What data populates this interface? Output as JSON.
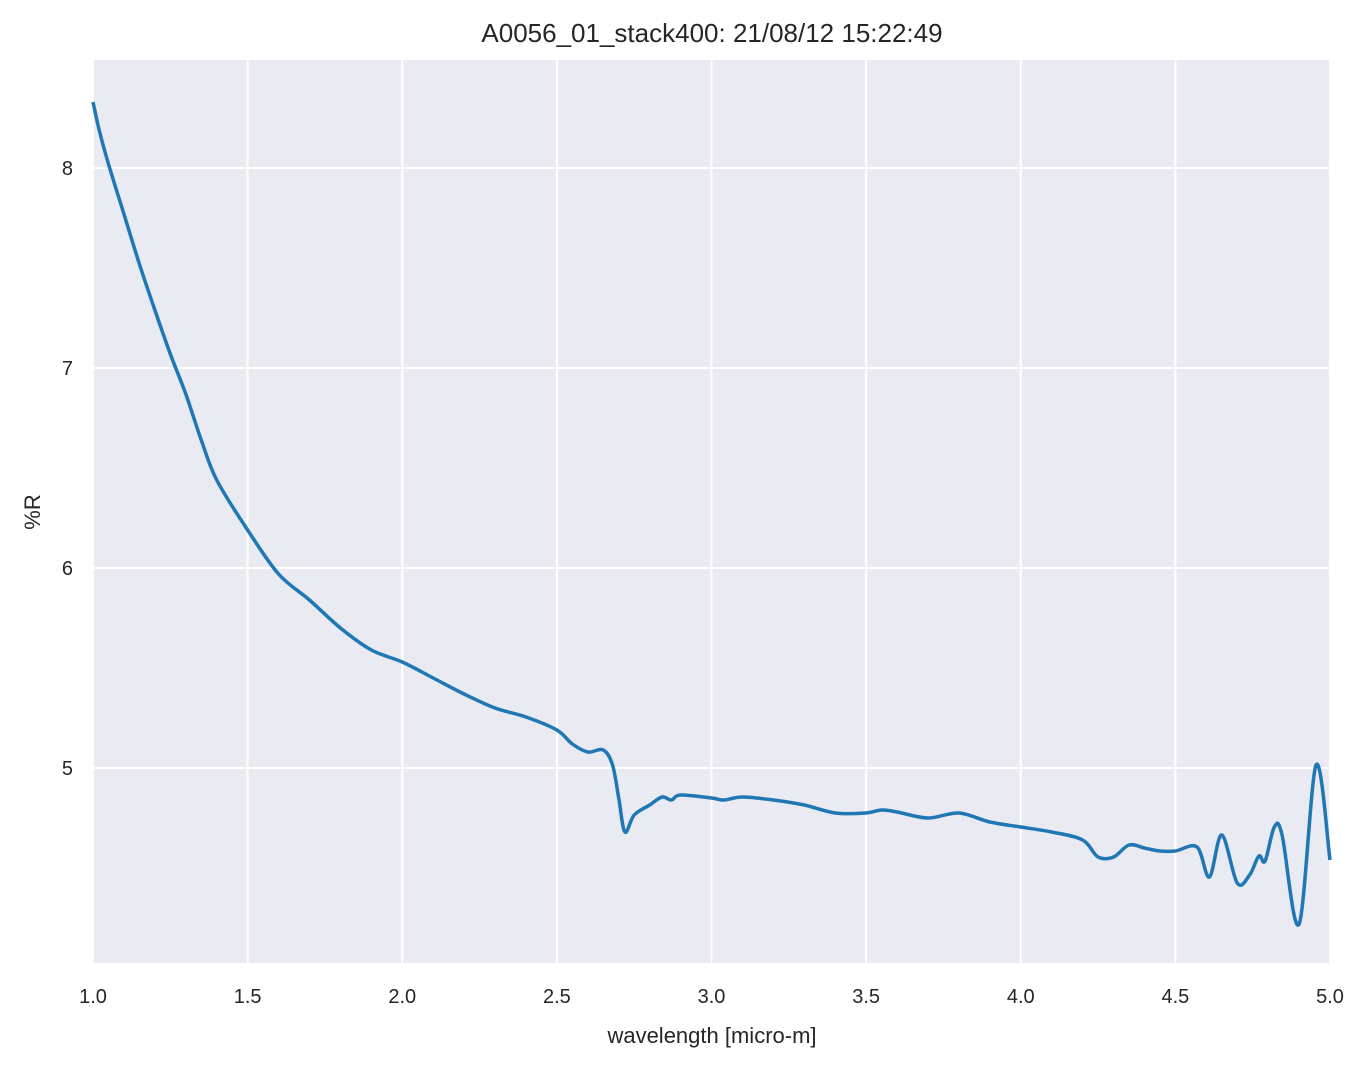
{
  "chart_data": {
    "type": "line",
    "title": "A0056_01_stack400:  21/08/12 15:22:49",
    "xlabel": "wavelength [micro-m]",
    "ylabel": "%R",
    "xlim": [
      1.0,
      5.0
    ],
    "ylim": [
      4.025,
      8.54
    ],
    "xticks": [
      "1.0",
      "1.5",
      "2.0",
      "2.5",
      "3.0",
      "3.5",
      "4.0",
      "4.5",
      "5.0"
    ],
    "yticks": [
      "5",
      "6",
      "7",
      "8"
    ],
    "grid": true,
    "background_color": "#eaeaf2",
    "grid_color": "#ffffff",
    "line_color": "#1f77b4",
    "series": [
      {
        "x": [
          1.0,
          1.02,
          1.05,
          1.1,
          1.15,
          1.2,
          1.25,
          1.3,
          1.35,
          1.4,
          1.5,
          1.6,
          1.7,
          1.8,
          1.9,
          2.0,
          2.1,
          2.2,
          2.3,
          2.4,
          2.5,
          2.55,
          2.6,
          2.65,
          2.68,
          2.7,
          2.72,
          2.75,
          2.8,
          2.84,
          2.87,
          2.9,
          3.0,
          3.04,
          3.1,
          3.2,
          3.3,
          3.4,
          3.5,
          3.55,
          3.6,
          3.7,
          3.8,
          3.9,
          4.0,
          4.1,
          4.2,
          4.25,
          4.3,
          4.35,
          4.4,
          4.45,
          4.5,
          4.57,
          4.61,
          4.65,
          4.7,
          4.74,
          4.77,
          4.79,
          4.82,
          4.845,
          4.9,
          4.955,
          5.0
        ],
        "y": [
          8.33,
          8.19,
          8.02,
          7.77,
          7.52,
          7.29,
          7.07,
          6.87,
          6.64,
          6.44,
          6.19,
          5.97,
          5.84,
          5.7,
          5.59,
          5.53,
          5.45,
          5.37,
          5.3,
          5.255,
          5.19,
          5.12,
          5.08,
          5.09,
          5.015,
          4.85,
          4.68,
          4.765,
          4.815,
          4.855,
          4.84,
          4.865,
          4.85,
          4.84,
          4.855,
          4.84,
          4.815,
          4.775,
          4.775,
          4.79,
          4.78,
          4.75,
          4.775,
          4.73,
          4.705,
          4.68,
          4.64,
          4.555,
          4.555,
          4.615,
          4.6,
          4.585,
          4.585,
          4.605,
          4.455,
          4.665,
          4.425,
          4.465,
          4.56,
          4.535,
          4.705,
          4.665,
          4.22,
          5.015,
          4.54
        ]
      }
    ]
  }
}
